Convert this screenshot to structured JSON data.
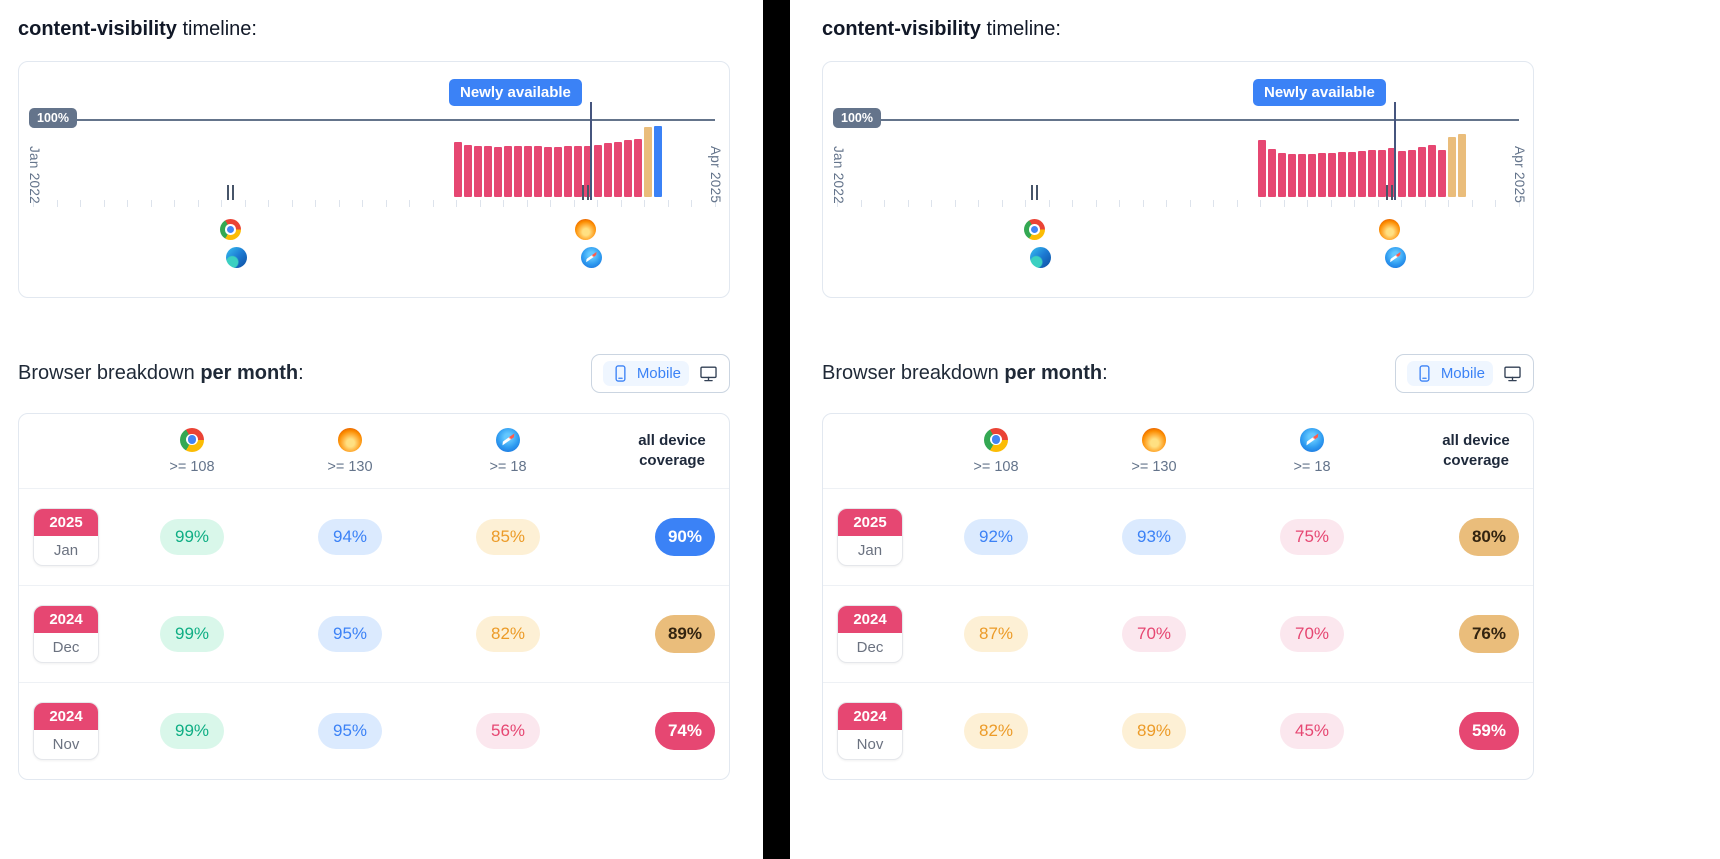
{
  "colors": {
    "accent_pink": "#e64772",
    "accent_tan": "#eabd7b",
    "accent_blue": "#3b82f6",
    "green_text": "#0fae84",
    "orange_text": "#ec9b28",
    "slate_text": "#64748b",
    "dark_text": "#1e293b",
    "card_border": "#e2e8f0",
    "divider": "#000000",
    "reference_badge_gray": "#64748b"
  },
  "chart_data": [
    {
      "type": "bar",
      "title": "content-visibility support timeline (left panel)",
      "x_start_label": "Jan 2022",
      "x_end_label": "Apr 2025",
      "ylim": [
        0,
        100
      ],
      "reference_line_label": "100%",
      "annotation_label": "Newly available",
      "bar_unit": "percent all-device coverage per month (estimated from pixels)",
      "bars": [
        {
          "v": 70,
          "c": "pink"
        },
        {
          "v": 66,
          "c": "pink"
        },
        {
          "v": 64,
          "c": "pink"
        },
        {
          "v": 64,
          "c": "pink"
        },
        {
          "v": 63,
          "c": "pink"
        },
        {
          "v": 64,
          "c": "pink"
        },
        {
          "v": 64,
          "c": "pink"
        },
        {
          "v": 64,
          "c": "pink"
        },
        {
          "v": 64,
          "c": "pink"
        },
        {
          "v": 63,
          "c": "pink"
        },
        {
          "v": 63,
          "c": "pink"
        },
        {
          "v": 64,
          "c": "pink"
        },
        {
          "v": 64,
          "c": "pink"
        },
        {
          "v": 65,
          "c": "pink"
        },
        {
          "v": 66,
          "c": "pink"
        },
        {
          "v": 68,
          "c": "pink"
        },
        {
          "v": 70,
          "c": "pink"
        },
        {
          "v": 72,
          "c": "pink"
        },
        {
          "v": 74,
          "c": "pink"
        },
        {
          "v": 89,
          "c": "tan"
        },
        {
          "v": 90,
          "c": "blue"
        }
      ],
      "browser_markers": [
        {
          "browsers": [
            "chrome",
            "edge"
          ]
        },
        {
          "browsers": [
            "firefox",
            "safari"
          ]
        }
      ]
    },
    {
      "type": "bar",
      "title": "content-visibility support timeline (right panel)",
      "x_start_label": "Jan 2022",
      "x_end_label": "Apr 2025",
      "ylim": [
        0,
        100
      ],
      "reference_line_label": "100%",
      "annotation_label": "Newly available",
      "bar_unit": "percent all-device coverage per month (estimated from pixels)",
      "bars": [
        {
          "v": 72,
          "c": "pink"
        },
        {
          "v": 61,
          "c": "pink"
        },
        {
          "v": 56,
          "c": "pink"
        },
        {
          "v": 54,
          "c": "pink"
        },
        {
          "v": 54,
          "c": "pink"
        },
        {
          "v": 55,
          "c": "pink"
        },
        {
          "v": 56,
          "c": "pink"
        },
        {
          "v": 56,
          "c": "pink"
        },
        {
          "v": 57,
          "c": "pink"
        },
        {
          "v": 57,
          "c": "pink"
        },
        {
          "v": 58,
          "c": "pink"
        },
        {
          "v": 59,
          "c": "pink"
        },
        {
          "v": 60,
          "c": "pink"
        },
        {
          "v": 62,
          "c": "pink"
        },
        {
          "v": 58,
          "c": "pink"
        },
        {
          "v": 60,
          "c": "pink"
        },
        {
          "v": 63,
          "c": "pink"
        },
        {
          "v": 66,
          "c": "pink"
        },
        {
          "v": 59,
          "c": "pink"
        },
        {
          "v": 76,
          "c": "tan"
        },
        {
          "v": 80,
          "c": "tan"
        }
      ],
      "browser_markers": [
        {
          "browsers": [
            "chrome",
            "edge"
          ]
        },
        {
          "browsers": [
            "firefox",
            "safari"
          ]
        }
      ]
    }
  ],
  "panels": [
    {
      "title_feature": "content-visibility",
      "title_rest": " timeline:",
      "breakdown_prefix": "Browser breakdown ",
      "breakdown_bold": "per month",
      "breakdown_suffix": ":",
      "toggle": {
        "mobile_label": "Mobile"
      },
      "table": {
        "columns": [
          {
            "browser": "chrome",
            "version": ">= 108"
          },
          {
            "browser": "firefox",
            "version": ">= 130"
          },
          {
            "browser": "safari",
            "version": ">= 18"
          }
        ],
        "all_device_label": "all device coverage",
        "rows": [
          {
            "year": "2025",
            "month": "Jan",
            "cells": [
              {
                "value": "99%",
                "color": "green"
              },
              {
                "value": "94%",
                "color": "blue"
              },
              {
                "value": "85%",
                "color": "orange"
              }
            ],
            "total": {
              "value": "90%",
              "color": "blue-solid"
            }
          },
          {
            "year": "2024",
            "month": "Dec",
            "cells": [
              {
                "value": "99%",
                "color": "green"
              },
              {
                "value": "95%",
                "color": "blue"
              },
              {
                "value": "82%",
                "color": "orange"
              }
            ],
            "total": {
              "value": "89%",
              "color": "tan-solid"
            }
          },
          {
            "year": "2024",
            "month": "Nov",
            "cells": [
              {
                "value": "99%",
                "color": "green"
              },
              {
                "value": "95%",
                "color": "blue"
              },
              {
                "value": "56%",
                "color": "pink"
              }
            ],
            "total": {
              "value": "74%",
              "color": "pink-solid"
            }
          }
        ]
      }
    },
    {
      "title_feature": "content-visibility",
      "title_rest": " timeline:",
      "breakdown_prefix": "Browser breakdown ",
      "breakdown_bold": "per month",
      "breakdown_suffix": ":",
      "toggle": {
        "mobile_label": "Mobile"
      },
      "table": {
        "columns": [
          {
            "browser": "chrome",
            "version": ">= 108"
          },
          {
            "browser": "firefox",
            "version": ">= 130"
          },
          {
            "browser": "safari",
            "version": ">= 18"
          }
        ],
        "all_device_label": "all device coverage",
        "rows": [
          {
            "year": "2025",
            "month": "Jan",
            "cells": [
              {
                "value": "92%",
                "color": "blue"
              },
              {
                "value": "93%",
                "color": "blue"
              },
              {
                "value": "75%",
                "color": "pink"
              }
            ],
            "total": {
              "value": "80%",
              "color": "tan-solid"
            }
          },
          {
            "year": "2024",
            "month": "Dec",
            "cells": [
              {
                "value": "87%",
                "color": "orange"
              },
              {
                "value": "70%",
                "color": "pink"
              },
              {
                "value": "70%",
                "color": "pink"
              }
            ],
            "total": {
              "value": "76%",
              "color": "tan-solid"
            }
          },
          {
            "year": "2024",
            "month": "Nov",
            "cells": [
              {
                "value": "82%",
                "color": "orange"
              },
              {
                "value": "89%",
                "color": "orange"
              },
              {
                "value": "45%",
                "color": "pink"
              }
            ],
            "total": {
              "value": "59%",
              "color": "pink-solid"
            }
          }
        ]
      }
    }
  ]
}
